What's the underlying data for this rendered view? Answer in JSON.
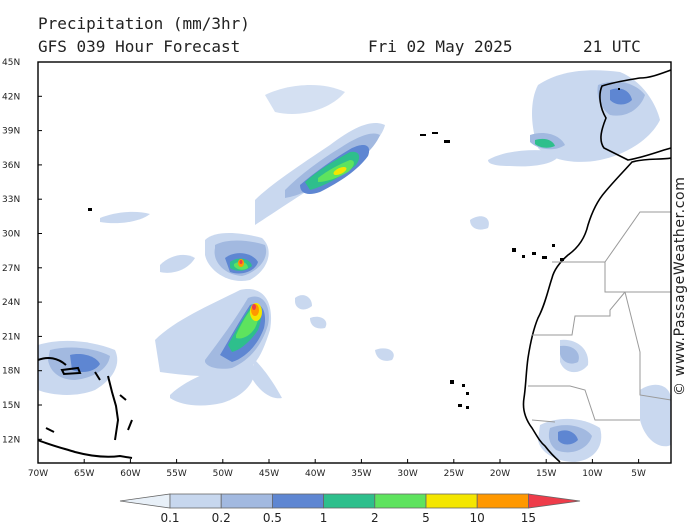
{
  "header": {
    "line1": "Precipitation (mm/3hr)",
    "line2": "GFS 039 Hour Forecast",
    "date": "Fri 02 May 2025",
    "time": "21 UTC"
  },
  "map": {
    "lat_labels": [
      "45N",
      "42N",
      "39N",
      "36N",
      "33N",
      "30N",
      "27N",
      "24N",
      "21N",
      "18N",
      "15N",
      "12N"
    ],
    "lon_labels": [
      "70W",
      "65W",
      "60W",
      "55W",
      "50W",
      "45W",
      "40W",
      "35W",
      "30W",
      "25W",
      "20W",
      "15W",
      "10W",
      "5W"
    ]
  },
  "legend": {
    "labels": [
      "0.1",
      "0.2",
      "0.5",
      "1",
      "2",
      "5",
      "10",
      "15"
    ],
    "colors": [
      "#e8f0f8",
      "#c7d7ee",
      "#a2b9e0",
      "#5e86d2",
      "#2ebf8c",
      "#5ee35e",
      "#f4e600",
      "#ff9800",
      "#ee3c4a"
    ]
  },
  "copyright": "© www.PassageWeather.com"
}
